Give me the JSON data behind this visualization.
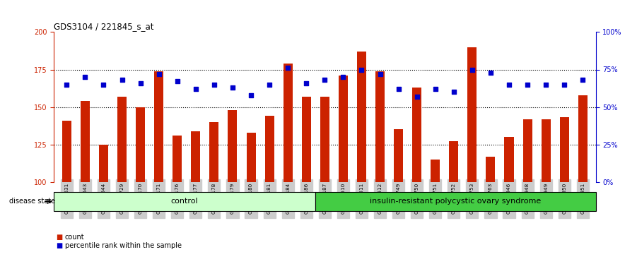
{
  "title": "GDS3104 / 221845_s_at",
  "samples": [
    "GSM155631",
    "GSM155643",
    "GSM155644",
    "GSM155729",
    "GSM156170",
    "GSM156171",
    "GSM156176",
    "GSM156177",
    "GSM156178",
    "GSM156179",
    "GSM156180",
    "GSM156181",
    "GSM156184",
    "GSM156186",
    "GSM156187",
    "GSM156510",
    "GSM156511",
    "GSM156512",
    "GSM156749",
    "GSM156750",
    "GSM156751",
    "GSM156752",
    "GSM156753",
    "GSM156763",
    "GSM156946",
    "GSM156948",
    "GSM156949",
    "GSM156950",
    "GSM156951"
  ],
  "bar_values": [
    141,
    154,
    125,
    157,
    150,
    174,
    131,
    134,
    140,
    148,
    133,
    144,
    179,
    157,
    157,
    171,
    187,
    174,
    135,
    163,
    115,
    127,
    190,
    117,
    130,
    142,
    142,
    143,
    158
  ],
  "dot_values": [
    65,
    70,
    65,
    68,
    66,
    72,
    67,
    62,
    65,
    63,
    58,
    65,
    76,
    66,
    68,
    70,
    75,
    72,
    62,
    57,
    62,
    60,
    75,
    73,
    65,
    65,
    65,
    65,
    68
  ],
  "control_count": 14,
  "disease_count": 15,
  "control_label": "control",
  "disease_label": "insulin-resistant polycystic ovary syndrome",
  "disease_state_label": "disease state",
  "legend_bar": "count",
  "legend_dot": "percentile rank within the sample",
  "ylim_left": [
    100,
    200
  ],
  "ylim_right": [
    0,
    100
  ],
  "yticks_left": [
    100,
    125,
    150,
    175,
    200
  ],
  "yticks_right": [
    0,
    25,
    50,
    75,
    100
  ],
  "ytick_labels_right": [
    "0%",
    "25%",
    "50%",
    "75%",
    "100%"
  ],
  "hlines": [
    125,
    150,
    175
  ],
  "bar_color": "#cc2200",
  "dot_color": "#0000cc",
  "control_bg": "#ccffcc",
  "disease_bg": "#44cc44",
  "tick_label_bg": "#cccccc",
  "bar_width": 0.5
}
